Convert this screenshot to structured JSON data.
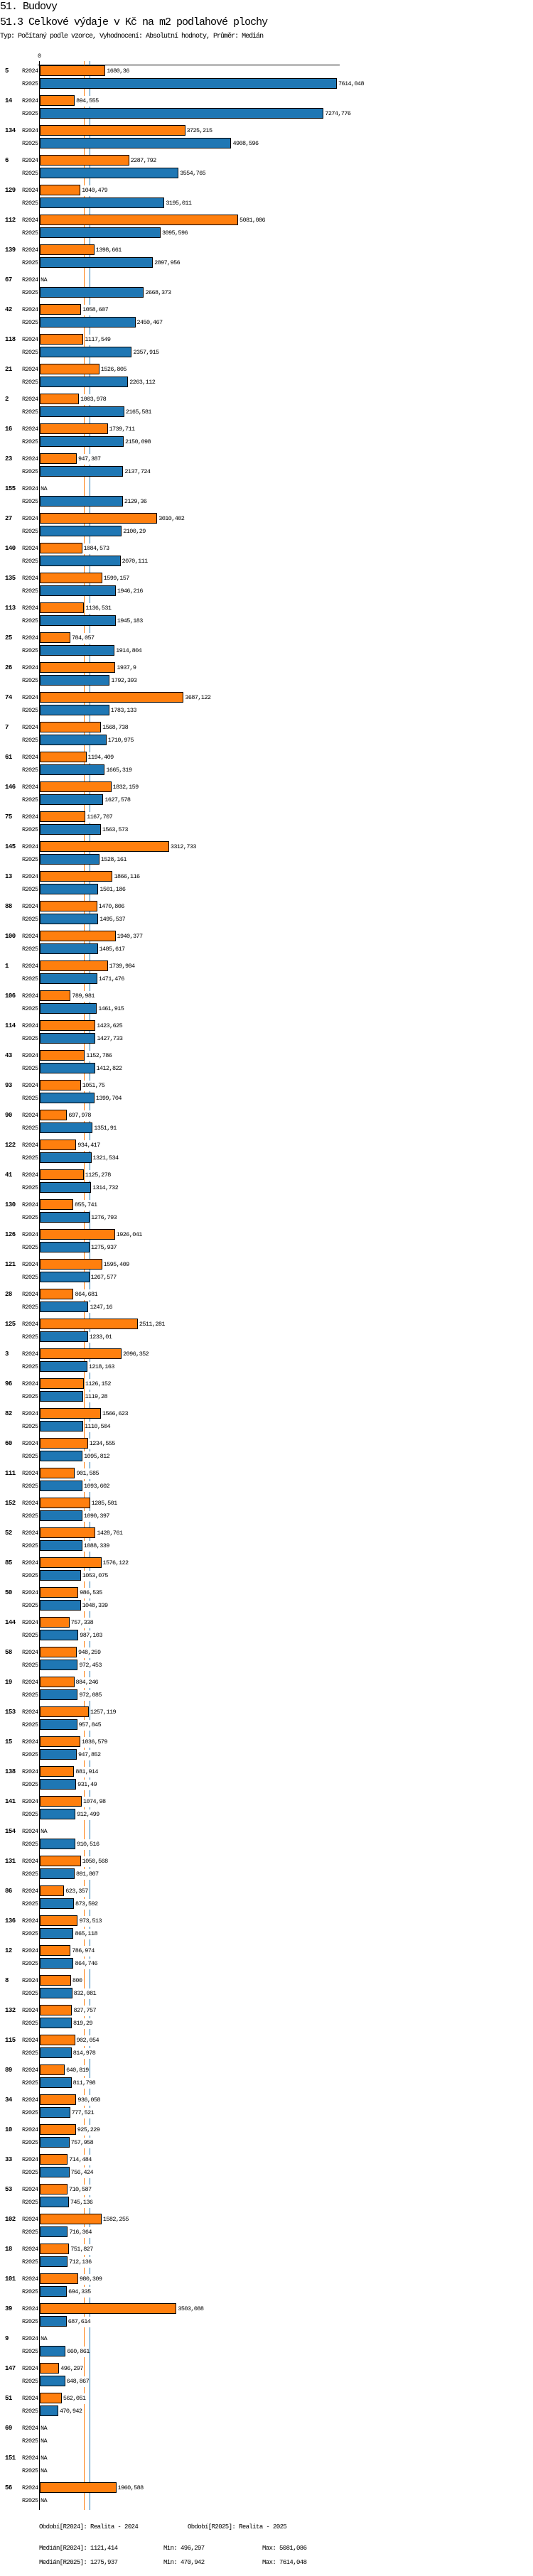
{
  "header": {
    "title": "51. Budovy",
    "subtitle": "51.3 Celkové výdaje v Kč na m2 podlahové plochy",
    "info": "Typ: Počítaný podle vzorce, Vyhodnocení: Absolutní hodnoty, Průměr: Medián"
  },
  "chart_data": {
    "type": "bar",
    "orientation": "horizontal",
    "title": "51.3 Celkové výdaje v Kč na m2 podlahové plochy",
    "axis_zero_label": "0",
    "colors": {
      "R2024": "#ff7f0e",
      "R2025": "#1f77b4"
    },
    "series_names": [
      "R2024",
      "R2025"
    ],
    "xlim": [
      0,
      7614.048
    ],
    "groups": [
      {
        "id": "5",
        "R2024": "1680,36",
        "R2025": "7614,048"
      },
      {
        "id": "14",
        "R2024": "894,555",
        "R2025": "7274,776"
      },
      {
        "id": "134",
        "R2024": "3725,215",
        "R2025": "4908,596"
      },
      {
        "id": "6",
        "R2024": "2287,792",
        "R2025": "3554,765"
      },
      {
        "id": "129",
        "R2024": "1040,479",
        "R2025": "3195,011"
      },
      {
        "id": "112",
        "R2024": "5081,086",
        "R2025": "3095,596"
      },
      {
        "id": "139",
        "R2024": "1398,661",
        "R2025": "2897,956"
      },
      {
        "id": "67",
        "R2024": "NA",
        "R2025": "2668,373"
      },
      {
        "id": "42",
        "R2024": "1058,607",
        "R2025": "2450,467"
      },
      {
        "id": "118",
        "R2024": "1117,549",
        "R2025": "2357,915"
      },
      {
        "id": "21",
        "R2024": "1526,805",
        "R2025": "2263,112"
      },
      {
        "id": "2",
        "R2024": "1003,978",
        "R2025": "2165,581"
      },
      {
        "id": "16",
        "R2024": "1739,711",
        "R2025": "2150,098"
      },
      {
        "id": "23",
        "R2024": "947,387",
        "R2025": "2137,724"
      },
      {
        "id": "155",
        "R2024": "NA",
        "R2025": "2129,36"
      },
      {
        "id": "27",
        "R2024": "3010,402",
        "R2025": "2100,29"
      },
      {
        "id": "140",
        "R2024": "1084,573",
        "R2025": "2070,111"
      },
      {
        "id": "135",
        "R2024": "1599,157",
        "R2025": "1946,216"
      },
      {
        "id": "113",
        "R2024": "1136,531",
        "R2025": "1945,183"
      },
      {
        "id": "25",
        "R2024": "784,057",
        "R2025": "1914,804"
      },
      {
        "id": "26",
        "R2024": "1937,9",
        "R2025": "1792,393"
      },
      {
        "id": "74",
        "R2024": "3687,122",
        "R2025": "1783,133"
      },
      {
        "id": "7",
        "R2024": "1568,738",
        "R2025": "1710,975"
      },
      {
        "id": "61",
        "R2024": "1194,409",
        "R2025": "1665,319"
      },
      {
        "id": "146",
        "R2024": "1832,159",
        "R2025": "1627,578"
      },
      {
        "id": "75",
        "R2024": "1167,707",
        "R2025": "1563,573"
      },
      {
        "id": "145",
        "R2024": "3312,733",
        "R2025": "1528,161"
      },
      {
        "id": "13",
        "R2024": "1866,116",
        "R2025": "1501,186"
      },
      {
        "id": "88",
        "R2024": "1470,806",
        "R2025": "1495,537"
      },
      {
        "id": "100",
        "R2024": "1940,377",
        "R2025": "1485,617"
      },
      {
        "id": "1",
        "R2024": "1739,984",
        "R2025": "1471,476"
      },
      {
        "id": "106",
        "R2024": "789,981",
        "R2025": "1461,915"
      },
      {
        "id": "114",
        "R2024": "1423,625",
        "R2025": "1427,733"
      },
      {
        "id": "43",
        "R2024": "1152,786",
        "R2025": "1412,822"
      },
      {
        "id": "93",
        "R2024": "1051,75",
        "R2025": "1399,704"
      },
      {
        "id": "90",
        "R2024": "697,978",
        "R2025": "1351,91"
      },
      {
        "id": "122",
        "R2024": "934,417",
        "R2025": "1321,534"
      },
      {
        "id": "41",
        "R2024": "1125,278",
        "R2025": "1314,732"
      },
      {
        "id": "130",
        "R2024": "855,741",
        "R2025": "1276,793"
      },
      {
        "id": "126",
        "R2024": "1926,041",
        "R2025": "1275,937"
      },
      {
        "id": "121",
        "R2024": "1595,409",
        "R2025": "1267,577"
      },
      {
        "id": "28",
        "R2024": "864,681",
        "R2025": "1247,16"
      },
      {
        "id": "125",
        "R2024": "2511,281",
        "R2025": "1233,01"
      },
      {
        "id": "3",
        "R2024": "2096,352",
        "R2025": "1218,163"
      },
      {
        "id": "96",
        "R2024": "1126,152",
        "R2025": "1119,28"
      },
      {
        "id": "82",
        "R2024": "1566,623",
        "R2025": "1110,504"
      },
      {
        "id": "60",
        "R2024": "1234,555",
        "R2025": "1095,812"
      },
      {
        "id": "111",
        "R2024": "901,585",
        "R2025": "1093,602"
      },
      {
        "id": "152",
        "R2024": "1285,501",
        "R2025": "1090,397"
      },
      {
        "id": "52",
        "R2024": "1428,761",
        "R2025": "1088,339"
      },
      {
        "id": "85",
        "R2024": "1576,122",
        "R2025": "1053,075"
      },
      {
        "id": "50",
        "R2024": "986,535",
        "R2025": "1048,339"
      },
      {
        "id": "144",
        "R2024": "757,338",
        "R2025": "987,103"
      },
      {
        "id": "58",
        "R2024": "948,259",
        "R2025": "972,453"
      },
      {
        "id": "19",
        "R2024": "884,246",
        "R2025": "972,085"
      },
      {
        "id": "153",
        "R2024": "1257,119",
        "R2025": "957,845"
      },
      {
        "id": "15",
        "R2024": "1036,579",
        "R2025": "947,852"
      },
      {
        "id": "138",
        "R2024": "881,914",
        "R2025": "931,49"
      },
      {
        "id": "141",
        "R2024": "1074,98",
        "R2025": "912,499"
      },
      {
        "id": "154",
        "R2024": "NA",
        "R2025": "910,516"
      },
      {
        "id": "131",
        "R2024": "1050,568",
        "R2025": "891,807"
      },
      {
        "id": "86",
        "R2024": "623,357",
        "R2025": "873,592"
      },
      {
        "id": "136",
        "R2024": "973,513",
        "R2025": "865,118"
      },
      {
        "id": "12",
        "R2024": "786,974",
        "R2025": "864,746"
      },
      {
        "id": "8",
        "R2024": "800",
        "R2025": "832,081"
      },
      {
        "id": "132",
        "R2024": "827,757",
        "R2025": "819,29"
      },
      {
        "id": "115",
        "R2024": "902,054",
        "R2025": "814,978"
      },
      {
        "id": "89",
        "R2024": "640,819",
        "R2025": "811,798"
      },
      {
        "id": "34",
        "R2024": "936,058",
        "R2025": "777,521"
      },
      {
        "id": "10",
        "R2024": "925,229",
        "R2025": "757,958"
      },
      {
        "id": "33",
        "R2024": "714,484",
        "R2025": "756,424"
      },
      {
        "id": "53",
        "R2024": "710,587",
        "R2025": "745,136"
      },
      {
        "id": "102",
        "R2024": "1582,255",
        "R2025": "716,364"
      },
      {
        "id": "18",
        "R2024": "751,827",
        "R2025": "712,136"
      },
      {
        "id": "101",
        "R2024": "980,309",
        "R2025": "694,335"
      },
      {
        "id": "39",
        "R2024": "3503,088",
        "R2025": "687,614"
      },
      {
        "id": "9",
        "R2024": "NA",
        "R2025": "660,861"
      },
      {
        "id": "147",
        "R2024": "496,297",
        "R2025": "648,867"
      },
      {
        "id": "51",
        "R2024": "562,051",
        "R2025": "470,942"
      },
      {
        "id": "69",
        "R2024": "NA",
        "R2025": "NA"
      },
      {
        "id": "151",
        "R2024": "NA",
        "R2025": "NA"
      },
      {
        "id": "56",
        "R2024": "1960,588",
        "R2025": "NA"
      }
    ],
    "median_lines": {
      "R2024": 1121.414,
      "R2025": 1275.937
    }
  },
  "footer": {
    "period_2024": "Období[R2024]: Realita - 2024",
    "period_2025": "Období[R2025]: Realita - 2025",
    "median_2024": "Medián[R2024]: 1121,414",
    "median_2025": "Medián[R2025]: 1275,937",
    "min_2024": "Min: 496,297",
    "min_2025": "Min: 470,942",
    "max_2024": "Max: 5081,086",
    "max_2025": "Max: 7614,048"
  }
}
